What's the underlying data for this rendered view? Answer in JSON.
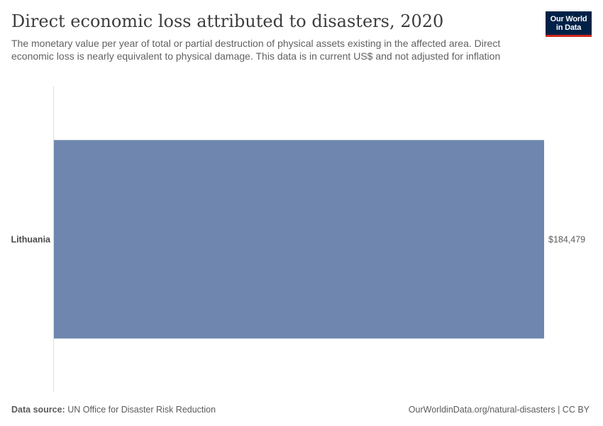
{
  "title": "Direct economic loss attributed to disasters, 2020",
  "subtitle": "The monetary value per year of total or partial destruction of physical assets existing in the affected area. Direct economic loss is nearly equivalent to physical damage. This data is in current US$ and not adjusted for inflation",
  "logo": {
    "line1": "Our World",
    "line2": "in Data",
    "background": "#002147",
    "accent": "#ce261e"
  },
  "footer": {
    "source_label": "Data source:",
    "source_text": "UN Office for Disaster Risk Reduction",
    "url_license": "OurWorldinData.org/natural-disasters | CC BY"
  },
  "chart_data": {
    "type": "bar",
    "orientation": "horizontal",
    "categories": [
      "Lithuania"
    ],
    "values": [
      184479
    ],
    "value_labels": [
      "$184,479"
    ],
    "bar_color": "#6f87ae",
    "xlim": [
      0,
      184479
    ],
    "grid": false,
    "legend": "none"
  }
}
